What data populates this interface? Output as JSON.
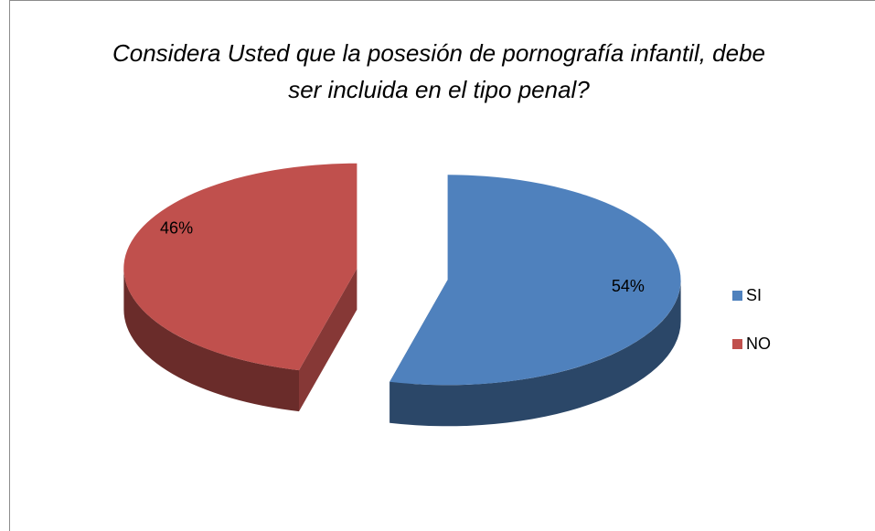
{
  "chart_data": {
    "type": "pie",
    "title": "Considera Usted que la posesión de pornografía infantil, debe ser incluida en el tipo penal?",
    "categories": [
      "SI",
      "NO"
    ],
    "values": [
      54,
      46
    ],
    "value_labels": [
      "54%",
      "46%"
    ],
    "colors": [
      "#4f81bd",
      "#c0504d"
    ],
    "legend": "right",
    "exploded": true,
    "three_d": true
  }
}
